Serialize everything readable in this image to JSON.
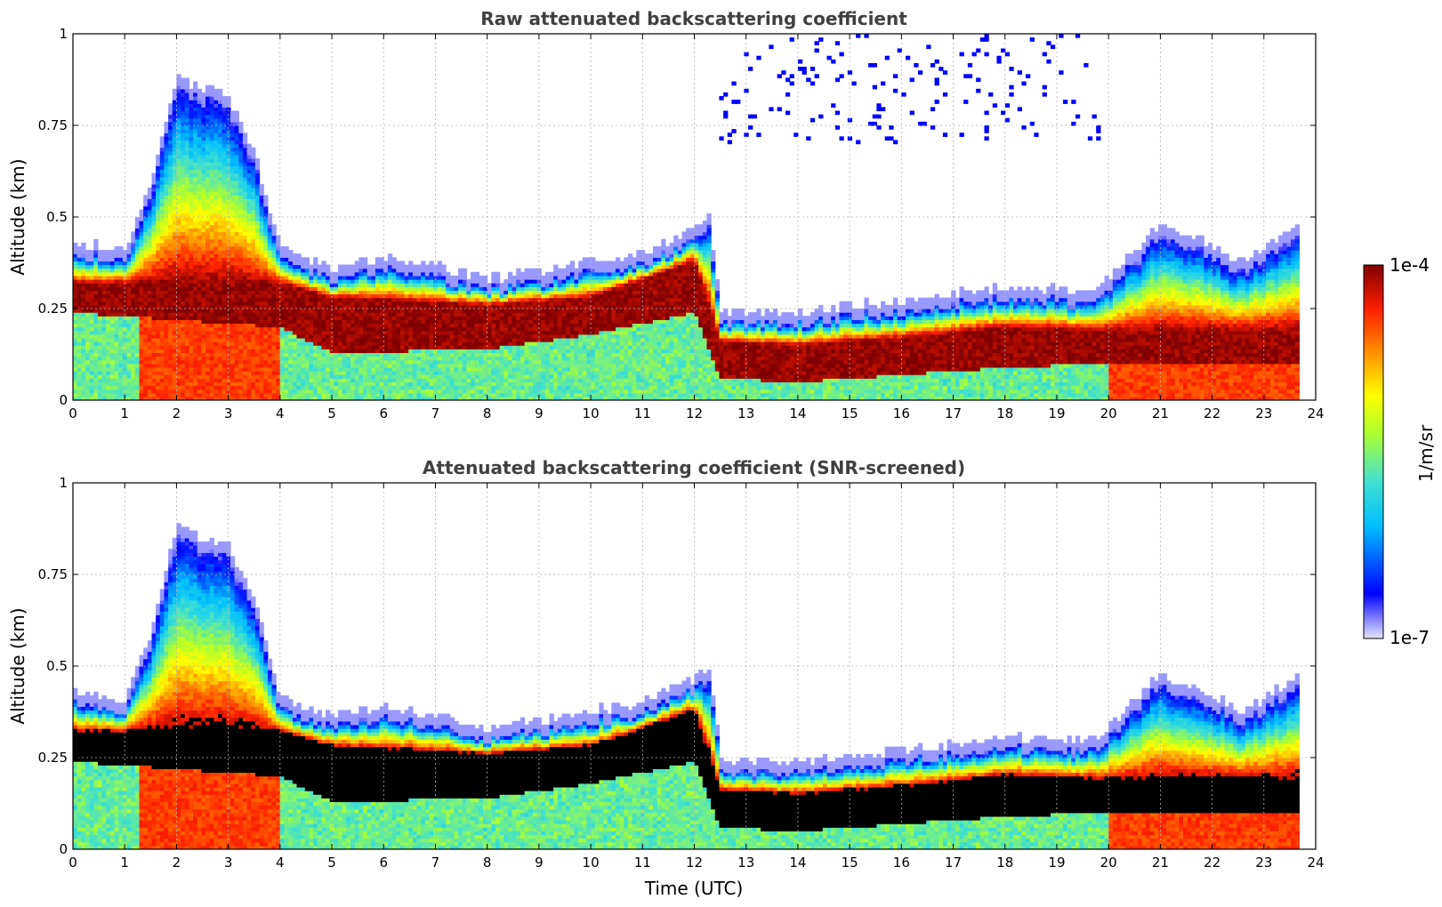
{
  "chart_data": [
    {
      "type": "heatmap",
      "title": "Raw attenuated backscattering coefficient",
      "xlabel": "",
      "ylabel": "Altitude (km)",
      "xlim": [
        0,
        24
      ],
      "ylim": [
        0,
        1
      ],
      "x_ticks": [
        "0",
        "1",
        "2",
        "3",
        "4",
        "5",
        "6",
        "7",
        "8",
        "9",
        "10",
        "11",
        "12",
        "13",
        "14",
        "15",
        "16",
        "17",
        "18",
        "19",
        "20",
        "21",
        "22",
        "23",
        "24"
      ],
      "y_ticks": [
        "0",
        "0.25",
        "0.5",
        "0.75",
        "1"
      ],
      "grid": true,
      "data_end_hour": 23.65,
      "layer_top_km": [
        [
          0,
          0.4
        ],
        [
          1,
          0.38
        ],
        [
          1.5,
          0.55
        ],
        [
          2,
          0.85
        ],
        [
          3,
          0.8
        ],
        [
          3.5,
          0.65
        ],
        [
          4,
          0.38
        ],
        [
          5,
          0.33
        ],
        [
          6,
          0.36
        ],
        [
          7,
          0.34
        ],
        [
          8,
          0.3
        ],
        [
          9,
          0.32
        ],
        [
          10,
          0.35
        ],
        [
          11,
          0.37
        ],
        [
          12,
          0.44
        ],
        [
          12.3,
          0.47
        ],
        [
          12.5,
          0.22
        ],
        [
          13,
          0.21
        ],
        [
          14,
          0.21
        ],
        [
          15,
          0.23
        ],
        [
          16,
          0.24
        ],
        [
          17,
          0.26
        ],
        [
          18,
          0.28
        ],
        [
          19,
          0.27
        ],
        [
          19.8,
          0.27
        ],
        [
          20,
          0.3
        ],
        [
          21,
          0.45
        ],
        [
          22,
          0.4
        ],
        [
          22.5,
          0.35
        ],
        [
          23,
          0.38
        ],
        [
          23.65,
          0.45
        ]
      ],
      "dense_layer_km": [
        [
          0,
          0.24,
          0.32
        ],
        [
          4,
          0.2,
          0.32
        ],
        [
          5,
          0.13,
          0.28
        ],
        [
          8,
          0.14,
          0.26
        ],
        [
          10,
          0.18,
          0.28
        ],
        [
          12,
          0.24,
          0.38
        ],
        [
          12.5,
          0.06,
          0.16
        ],
        [
          14,
          0.05,
          0.15
        ],
        [
          16,
          0.07,
          0.17
        ],
        [
          18,
          0.09,
          0.2
        ],
        [
          19.8,
          0.1,
          0.19
        ]
      ]
    },
    {
      "type": "heatmap",
      "title": "Attenuated backscattering coefficient (SNR-screened)",
      "xlabel": "Time (UTC)",
      "ylabel": "Altitude (km)",
      "xlim": [
        0,
        24
      ],
      "ylim": [
        0,
        1
      ],
      "x_ticks": [
        "0",
        "1",
        "2",
        "3",
        "4",
        "5",
        "6",
        "7",
        "8",
        "9",
        "10",
        "11",
        "12",
        "13",
        "14",
        "15",
        "16",
        "17",
        "18",
        "19",
        "20",
        "21",
        "22",
        "23",
        "24"
      ],
      "y_ticks": [
        "0",
        "0.25",
        "0.5",
        "0.75",
        "1"
      ],
      "grid": true,
      "data_end_hour": 23.65
    }
  ],
  "colorbar": {
    "label": "1/m/sr",
    "max_label": "1e-4",
    "min_label": "1e-7",
    "colormap": "jet",
    "colors": [
      "#e6e6fa",
      "#0000ff",
      "#00bfff",
      "#40e0d0",
      "#adff2f",
      "#ffff00",
      "#ff8c00",
      "#ff2000",
      "#800000"
    ]
  }
}
